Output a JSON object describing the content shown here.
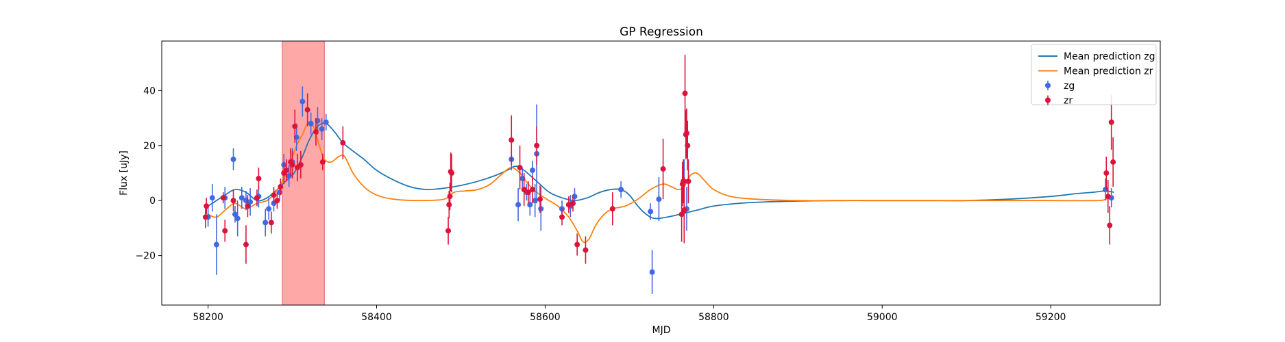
{
  "chart_data": {
    "type": "scatter",
    "title": "GP Regression",
    "xlabel": "MJD",
    "ylabel": "Flux [uJy]",
    "xlim": [
      58145,
      59330
    ],
    "ylim": [
      -38,
      58
    ],
    "xticks": [
      58200,
      58400,
      58600,
      58800,
      59000,
      59200
    ],
    "xtick_labels": [
      "58200",
      "58400",
      "58600",
      "58800",
      "59000",
      "59200"
    ],
    "yticks": [
      -20,
      0,
      20,
      40
    ],
    "ytick_labels": [
      "−20",
      "0",
      "20",
      "40"
    ],
    "grid": false,
    "legend_position": "top-right",
    "highlight_span": {
      "x0": 58288,
      "x1": 58338,
      "color": "#ff9999"
    },
    "lines": [
      {
        "name": "Mean prediction zg",
        "color": "#1f77b4",
        "x": [
          58200,
          58210,
          58220,
          58232,
          58245,
          58258,
          58270,
          58282,
          58292,
          58302,
          58312,
          58320,
          58330,
          58340,
          58350,
          58360,
          58372,
          58385,
          58400,
          58420,
          58440,
          58460,
          58480,
          58500,
          58520,
          58540,
          58555,
          58565,
          58575,
          58590,
          58605,
          58620,
          58635,
          58650,
          58665,
          58678,
          58690,
          58700,
          58710,
          58720,
          58730,
          58745,
          58760,
          58780,
          58800,
          58830,
          58860,
          58900,
          58950,
          59000,
          59050,
          59100,
          59150,
          59200,
          59230,
          59250,
          59265,
          59275
        ],
        "y": [
          -2,
          0,
          2,
          4,
          3,
          0,
          1,
          4,
          7,
          10,
          16,
          22,
          27,
          28,
          25,
          21,
          18,
          15,
          11,
          7.5,
          5,
          4,
          4.5,
          5.5,
          7,
          9,
          11,
          12.5,
          11,
          7,
          3,
          1,
          0,
          1,
          3,
          4,
          4,
          2,
          -2,
          -5,
          -6.5,
          -6,
          -5,
          -3.5,
          -2,
          -1,
          -0.5,
          -0.2,
          0,
          0,
          0,
          0,
          0.5,
          1.5,
          2.5,
          3,
          3.5,
          3
        ]
      },
      {
        "name": "Mean prediction zr",
        "color": "#ff7f0e",
        "x": [
          58200,
          58210,
          58222,
          58232,
          58245,
          58258,
          58270,
          58280,
          58290,
          58298,
          58305,
          58312,
          58318,
          58325,
          58332,
          58338,
          58346,
          58355,
          58362,
          58372,
          58385,
          58400,
          58420,
          58450,
          58480,
          58492,
          58505,
          58520,
          58535,
          58550,
          58560,
          58570,
          58580,
          58590,
          58602,
          58615,
          58628,
          58638,
          58645,
          58652,
          58660,
          58670,
          58680,
          58695,
          58710,
          58725,
          58740,
          58750,
          58758,
          58765,
          58772,
          58780,
          58790,
          58800,
          58820,
          58850,
          58900,
          58950,
          59000,
          59100,
          59200,
          59255,
          59265,
          59270,
          59275
        ],
        "y": [
          -5,
          -6,
          -3,
          -1,
          -3,
          -1,
          0,
          3,
          8,
          14,
          20,
          24,
          28,
          27,
          20,
          15,
          14,
          16,
          16,
          10,
          5,
          2,
          0.5,
          0,
          0.5,
          3,
          3.5,
          4,
          6,
          10,
          12,
          10,
          6,
          3,
          0.5,
          -2,
          -6,
          -11,
          -15,
          -14,
          -9,
          -5,
          -3,
          -2,
          0.5,
          4,
          6,
          5,
          4,
          5,
          9,
          10,
          7,
          4,
          1.5,
          0.5,
          0,
          0,
          0,
          0,
          0,
          0,
          0.5,
          1,
          1.5
        ]
      }
    ],
    "series": [
      {
        "name": "zg",
        "color": "#4169e1",
        "x": [
          58200,
          58205,
          58210,
          58220,
          58230,
          58232,
          58235,
          58240,
          58245,
          58250,
          58260,
          58268,
          58272,
          58278,
          58285,
          58290,
          58296,
          58300,
          58305,
          58312,
          58322,
          58330,
          58335,
          58340,
          58560,
          58568,
          58573,
          58578,
          58582,
          58585,
          58588,
          58590,
          58595,
          58620,
          58630,
          58635,
          58690,
          58725,
          58727,
          58735,
          58765,
          58768,
          59265,
          59272
        ],
        "y": [
          -6,
          1,
          -16,
          1,
          15,
          -5,
          -6.5,
          1,
          0,
          -0.5,
          1.5,
          -8,
          -3,
          -1,
          3,
          13,
          9,
          14,
          23,
          36,
          28,
          29,
          26,
          28.5,
          15,
          -1.5,
          8,
          3,
          -1.5,
          11,
          0,
          17,
          -3,
          -3,
          -2,
          1.5,
          4,
          -4,
          -26,
          0.5,
          7,
          -3,
          4,
          1
        ],
        "yerr": [
          3.5,
          5,
          11,
          4,
          4,
          3,
          6.5,
          4,
          3.5,
          5,
          4,
          5,
          4,
          3,
          3,
          4,
          4,
          5,
          5,
          5.5,
          4,
          5,
          4,
          3,
          4,
          6,
          4,
          3,
          4,
          3.5,
          6,
          18,
          8,
          3,
          4,
          3,
          3,
          3,
          8,
          8,
          8,
          8,
          4,
          3.5
        ]
      },
      {
        "name": "zr",
        "color": "#dc143c",
        "x": [
          58197,
          58198,
          58218,
          58220,
          58230,
          58245,
          58247,
          58258,
          58260,
          58275,
          58278,
          58282,
          58286,
          58290,
          58293,
          58298,
          58300,
          58303,
          58306,
          58310,
          58318,
          58328,
          58336,
          58360,
          58485,
          58486,
          58487,
          58488,
          58489,
          58560,
          58570,
          58575,
          58580,
          58585,
          58590,
          58594,
          58620,
          58628,
          58633,
          58638,
          58648,
          58680,
          58740,
          58762,
          58763,
          58764,
          58765,
          58766,
          58767,
          58768,
          58769,
          58770,
          59266,
          59268,
          59270,
          59272,
          59274
        ],
        "y": [
          -6,
          -2,
          1,
          -11,
          0,
          -16,
          -2,
          1,
          8,
          -8,
          2,
          0,
          5,
          10,
          11,
          14,
          13,
          27,
          12,
          13,
          33,
          25,
          14,
          21,
          -11,
          -1.5,
          1.5,
          10.5,
          10,
          22,
          12,
          4,
          3,
          4,
          20,
          0.5,
          -6,
          -1.5,
          -1,
          -16,
          -18,
          -3,
          11.5,
          -5,
          6,
          7,
          -3.5,
          39,
          24,
          24.5,
          20,
          7,
          10,
          1.5,
          -9,
          28.5,
          14
        ],
        "yerr": [
          4,
          3,
          2,
          4,
          4,
          7,
          4,
          3,
          4,
          4,
          3,
          3,
          3,
          4,
          4,
          5,
          5,
          6,
          5,
          5,
          6,
          5,
          3,
          6,
          5,
          5,
          5,
          7,
          7,
          9,
          8,
          6,
          4,
          5,
          7,
          5,
          3,
          3,
          3,
          4,
          5,
          6,
          11,
          10,
          8,
          8,
          12,
          14,
          9,
          9,
          9,
          8,
          6,
          6,
          7,
          10,
          9
        ]
      }
    ]
  }
}
